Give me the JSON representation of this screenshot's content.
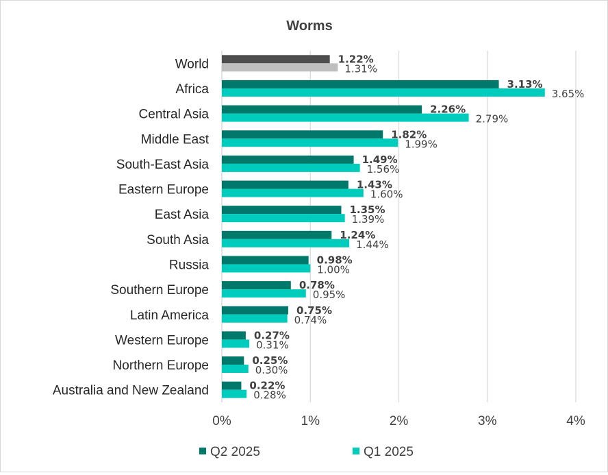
{
  "chart_data": {
    "type": "bar",
    "orientation": "horizontal",
    "title": "Worms",
    "categories": [
      "World",
      "Africa",
      "Central Asia",
      "Middle East",
      "South-East Asia",
      "Eastern Europe",
      "East Asia",
      "South Asia",
      "Russia",
      "Southern Europe",
      "Latin America",
      "Western Europe",
      "Northern Europe",
      "Australia and New Zealand"
    ],
    "series": [
      {
        "name": "Q2 2025",
        "color": "#00796b",
        "highlight_color": "#4d4d4d",
        "values": [
          1.22,
          3.13,
          2.26,
          1.82,
          1.49,
          1.43,
          1.35,
          1.24,
          0.98,
          0.78,
          0.75,
          0.27,
          0.25,
          0.22
        ],
        "labels": [
          "1.22%",
          "3.13%",
          "2.26%",
          "1.82%",
          "1.49%",
          "1.43%",
          "1.35%",
          "1.24%",
          "0.98%",
          "0.78%",
          "0.75%",
          "0.27%",
          "0.25%",
          "0.22%"
        ]
      },
      {
        "name": "Q1 2025",
        "color": "#00ccbe",
        "highlight_color": "#bfbfbf",
        "values": [
          1.31,
          3.65,
          2.79,
          1.99,
          1.56,
          1.6,
          1.39,
          1.44,
          1.0,
          0.95,
          0.74,
          0.31,
          0.3,
          0.28
        ],
        "labels": [
          "1.31%",
          "3.65%",
          "2.79%",
          "1.99%",
          "1.56%",
          "1.60%",
          "1.39%",
          "1.44%",
          "1.00%",
          "0.95%",
          "0.74%",
          "0.31%",
          "0.30%",
          "0.28%"
        ]
      }
    ],
    "xlim": [
      0,
      4
    ],
    "xticks": [
      0,
      1,
      2,
      3,
      4
    ],
    "xtick_labels": [
      "0%",
      "1%",
      "2%",
      "3%",
      "4%"
    ],
    "grid": "vertical",
    "legend_position": "bottom"
  }
}
